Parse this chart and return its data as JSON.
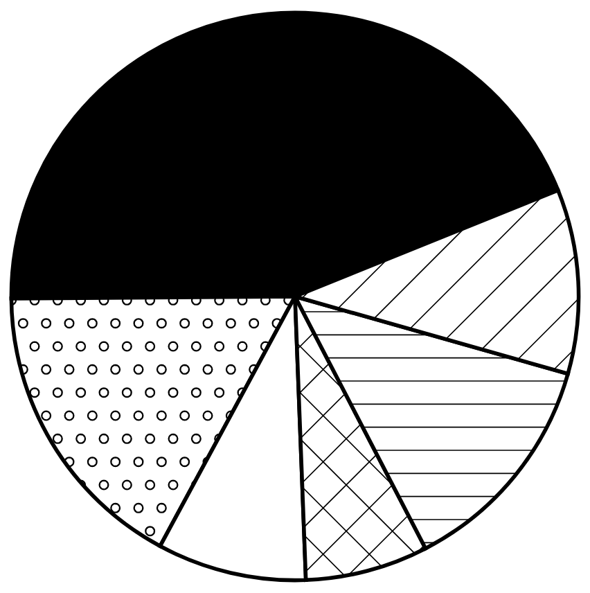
{
  "chart_data": {
    "type": "pie",
    "categories": [
      null,
      null,
      null,
      null,
      null,
      null
    ],
    "values": [
      44,
      17,
      8.5,
      7,
      13,
      10.5
    ],
    "colors": [
      "#000000",
      "#ffffff",
      "#ffffff",
      "#ffffff",
      "#ffffff",
      "#ffffff"
    ]
  }
}
